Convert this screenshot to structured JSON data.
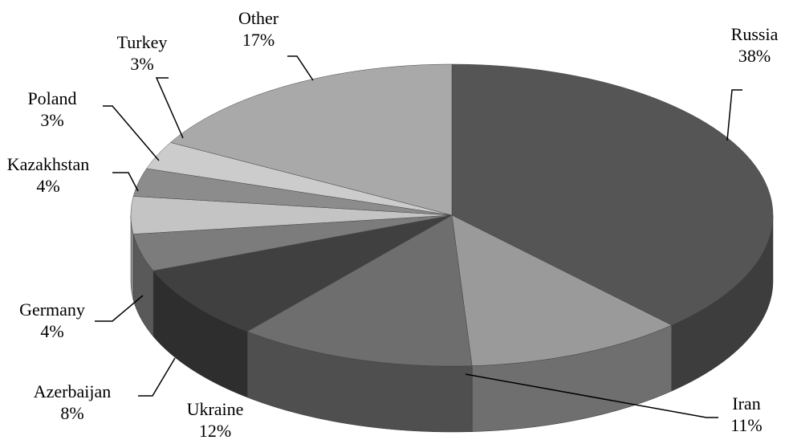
{
  "chart_data": {
    "type": "pie",
    "categories": [
      "Russia",
      "Iran",
      "Ukraine",
      "Azerbaijan",
      "Germany",
      "Kazakhstan",
      "Poland",
      "Turkey",
      "Other"
    ],
    "values": [
      38,
      11,
      12,
      8,
      4,
      4,
      3,
      3,
      17
    ],
    "value_labels": [
      "38%",
      "11%",
      "12%",
      "8%",
      "4%",
      "4%",
      "3%",
      "3%",
      "17%"
    ],
    "colors": [
      "#555555",
      "#9a9a9a",
      "#6e6e6e",
      "#404040",
      "#7c7c7c",
      "#c4c4c4",
      "#8c8c8c",
      "#cccccc",
      "#a9a9a9"
    ]
  }
}
